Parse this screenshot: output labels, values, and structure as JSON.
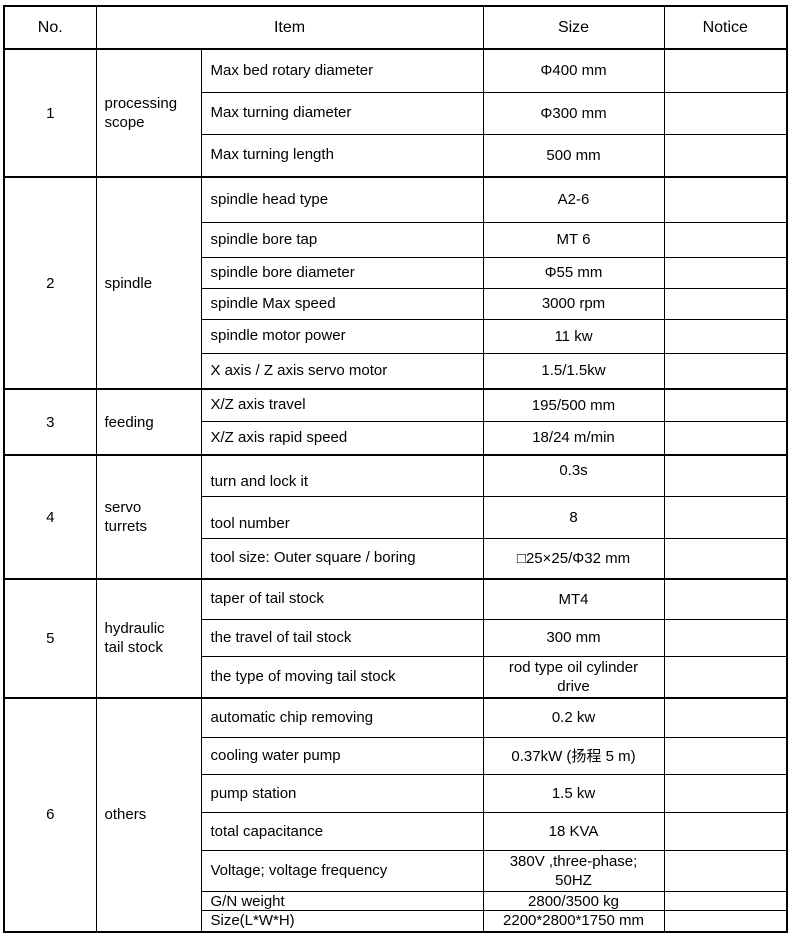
{
  "table": {
    "headers": {
      "no": "No.",
      "item": "Item",
      "size": "Size",
      "notice": "Notice"
    },
    "sections": [
      {
        "no": "1",
        "category": "processing\nscope",
        "rows": [
          {
            "item": "Max bed rotary diameter",
            "size": "Φ400 mm",
            "notice": ""
          },
          {
            "item": "Max turning diameter",
            "size": "Φ300 mm",
            "notice": ""
          },
          {
            "item": "Max turning length",
            "size": "500 mm",
            "notice": ""
          }
        ]
      },
      {
        "no": "2",
        "category": "spindle",
        "rows": [
          {
            "item": "spindle head type",
            "size": "A2-6",
            "notice": ""
          },
          {
            "item": "spindle bore tap",
            "size": "MT 6",
            "notice": ""
          },
          {
            "item": "spindle bore diameter",
            "size": "Φ55 mm",
            "notice": ""
          },
          {
            "item": "spindle Max speed",
            "size": "3000 rpm",
            "notice": ""
          },
          {
            "item": "spindle motor power",
            "size": "11 kw",
            "notice": ""
          },
          {
            "item": "X axis / Z axis servo motor",
            "size": "1.5/1.5kw",
            "notice": ""
          }
        ]
      },
      {
        "no": "3",
        "category": "feeding",
        "rows": [
          {
            "item": "X/Z axis travel",
            "size": "195/500 mm",
            "notice": ""
          },
          {
            "item": "X/Z axis rapid speed",
            "size": "18/24 m/min",
            "notice": ""
          }
        ]
      },
      {
        "no": "4",
        "category": "servo\nturrets",
        "rows": [
          {
            "item": "turn and lock it",
            "size": "0.3s",
            "notice": ""
          },
          {
            "item": "tool number",
            "size": "8",
            "notice": ""
          },
          {
            "item": "tool size: Outer square / boring",
            "size": "□25×25/Φ32 mm",
            "notice": ""
          }
        ]
      },
      {
        "no": "5",
        "category": "hydraulic\ntail stock",
        "rows": [
          {
            "item": "taper of tail stock",
            "size": "MT4",
            "notice": ""
          },
          {
            "item": "the travel of tail stock",
            "size": "300 mm",
            "notice": ""
          },
          {
            "item": "the type of moving tail stock",
            "size": "rod type oil cylinder\ndrive",
            "notice": ""
          }
        ]
      },
      {
        "no": "6",
        "category": "others",
        "rows": [
          {
            "item": "automatic chip removing",
            "size": "0.2 kw",
            "notice": ""
          },
          {
            "item": "cooling water pump",
            "size": "0.37kW (扬程 5 m)",
            "notice": ""
          },
          {
            "item": "pump station",
            "size": "1.5 kw",
            "notice": ""
          },
          {
            "item": "total capacitance",
            "size": "18 KVA",
            "notice": ""
          },
          {
            "item": "Voltage; voltage frequency",
            "size": "380V ,three-phase;\n50HZ",
            "notice": ""
          },
          {
            "item": "G/N weight",
            "size": "2800/3500 kg",
            "notice": ""
          },
          {
            "item": "Size(L*W*H)",
            "size": "2200*2800*1750 mm",
            "notice": ""
          }
        ]
      }
    ]
  }
}
